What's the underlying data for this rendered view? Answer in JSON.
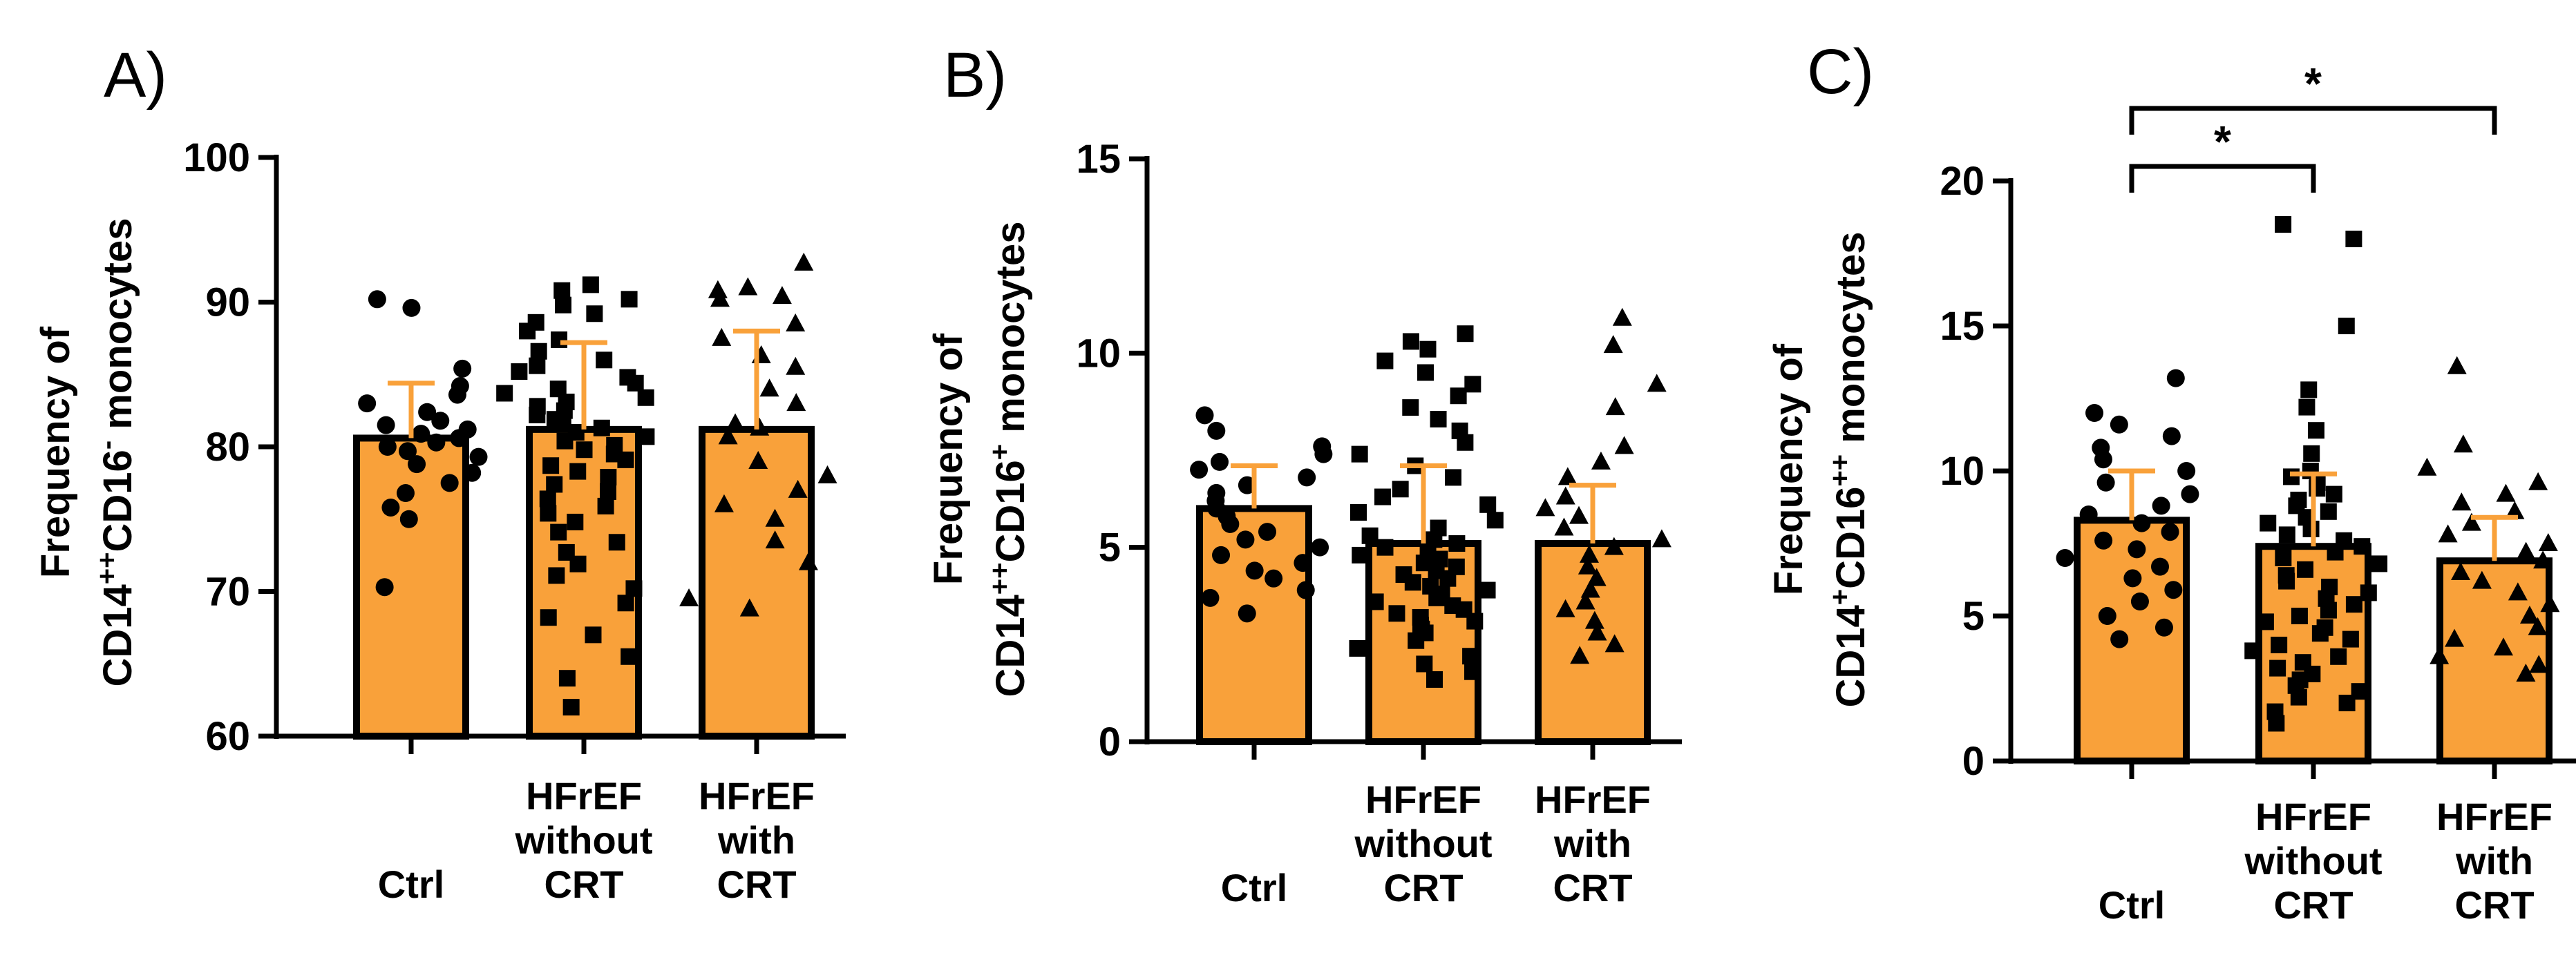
{
  "figure": {
    "bar_color": "#F9A13A",
    "error_color": "#F9A13A",
    "point_color": "#000000",
    "axis_color": "#000000"
  },
  "chart_data": [
    {
      "type": "bar",
      "panel": "A)",
      "ylabel_line1": "Frequency of",
      "ylabel_line2_parts": [
        "CD14",
        "++",
        "CD16",
        "-",
        " monocytes"
      ],
      "categories": [
        "Ctrl",
        "HFrEF without CRT",
        "HFrEF with CRT"
      ],
      "category_lines": [
        [
          "Ctrl"
        ],
        [
          "HFrEF",
          "without",
          "CRT"
        ],
        [
          "HFrEF",
          "with",
          "CRT"
        ]
      ],
      "means": [
        80.6,
        81.2,
        81.2
      ],
      "sd": [
        3.8,
        6.0,
        6.8
      ],
      "ylim": [
        60,
        100
      ],
      "yticks": [
        60,
        70,
        80,
        90,
        100
      ],
      "markers": [
        "circle",
        "square",
        "triangle"
      ],
      "points": [
        [
          90.2,
          89.6,
          85.4,
          84.2,
          83.6,
          83.0,
          82.4,
          81.8,
          81.5,
          81.2,
          80.9,
          80.6,
          80.3,
          80.0,
          79.7,
          79.3,
          78.8,
          78.2,
          77.5,
          76.8,
          75.8,
          75.0,
          70.3
        ],
        [
          91.2,
          90.8,
          90.2,
          89.8,
          89.2,
          88.6,
          88.0,
          87.4,
          86.6,
          86.0,
          85.6,
          85.2,
          84.8,
          84.4,
          84.0,
          83.7,
          83.4,
          83.1,
          82.8,
          82.5,
          82.2,
          81.9,
          81.6,
          81.3,
          81.0,
          80.7,
          80.4,
          80.1,
          79.8,
          79.5,
          79.1,
          78.7,
          78.3,
          77.9,
          77.4,
          76.9,
          76.4,
          75.9,
          75.4,
          74.8,
          74.1,
          73.4,
          72.7,
          71.9,
          71.1,
          70.2,
          69.2,
          68.2,
          67.0,
          65.5,
          64.0,
          62.0
        ],
        [
          92.7,
          91.0,
          90.8,
          90.4,
          90.2,
          88.5,
          87.5,
          86.3,
          85.5,
          84.0,
          83.0,
          81.6,
          81.3,
          80.7,
          79.0,
          78.0,
          77.0,
          76.0,
          75.0,
          73.5,
          72.0,
          69.5,
          68.8
        ]
      ]
    },
    {
      "type": "bar",
      "panel": "B)",
      "ylabel_line1": "Frequency of",
      "ylabel_line2_parts": [
        "CD14",
        "++",
        "CD16",
        "+",
        " monocytes"
      ],
      "categories": [
        "Ctrl",
        "HFrEF without CRT",
        "HFrEF with CRT"
      ],
      "category_lines": [
        [
          "Ctrl"
        ],
        [
          "HFrEF",
          "without",
          "CRT"
        ],
        [
          "HFrEF",
          "with",
          "CRT"
        ]
      ],
      "means": [
        6.0,
        5.1,
        5.1
      ],
      "sd": [
        1.1,
        2.0,
        1.5
      ],
      "ylim": [
        0,
        15
      ],
      "yticks": [
        0,
        5,
        10,
        15
      ],
      "markers": [
        "circle",
        "square",
        "triangle"
      ],
      "points": [
        [
          8.4,
          8.0,
          7.6,
          7.4,
          7.2,
          7.0,
          6.8,
          6.6,
          6.4,
          6.2,
          6.0,
          5.8,
          5.6,
          5.4,
          5.2,
          5.0,
          4.8,
          4.6,
          4.4,
          4.2,
          3.9,
          3.7,
          3.3
        ],
        [
          10.5,
          10.3,
          10.1,
          9.8,
          9.5,
          9.2,
          8.9,
          8.6,
          8.3,
          8.0,
          7.7,
          7.4,
          7.1,
          6.8,
          6.5,
          6.3,
          6.1,
          5.9,
          5.7,
          5.5,
          5.3,
          5.2,
          5.1,
          5.0,
          4.9,
          4.8,
          4.7,
          4.6,
          4.5,
          4.4,
          4.3,
          4.2,
          4.1,
          4.0,
          3.9,
          3.8,
          3.7,
          3.6,
          3.5,
          3.4,
          3.3,
          3.2,
          3.1,
          3.0,
          2.9,
          2.8,
          2.6,
          2.4,
          2.2,
          2.0,
          1.8,
          1.6
        ],
        [
          10.9,
          10.2,
          9.2,
          8.6,
          7.6,
          7.2,
          6.8,
          6.3,
          6.0,
          5.8,
          5.5,
          5.2,
          5.0,
          4.8,
          4.5,
          4.2,
          3.9,
          3.6,
          3.4,
          3.1,
          2.8,
          2.5,
          2.2
        ]
      ]
    },
    {
      "type": "bar",
      "panel": "C)",
      "ylabel_line1": "Frequency of",
      "ylabel_line2_parts": [
        "CD14",
        "+",
        "CD16",
        "++",
        " monocytes"
      ],
      "categories": [
        "Ctrl",
        "HFrEF without CRT",
        "HFrEF with CRT"
      ],
      "category_lines": [
        [
          "Ctrl"
        ],
        [
          "HFrEF",
          "without",
          "CRT"
        ],
        [
          "HFrEF",
          "with",
          "CRT"
        ]
      ],
      "means": [
        8.3,
        7.4,
        6.9
      ],
      "sd": [
        1.7,
        2.5,
        1.5
      ],
      "ylim": [
        0,
        20
      ],
      "yticks": [
        0,
        5,
        10,
        15,
        20
      ],
      "markers": [
        "circle",
        "square",
        "triangle"
      ],
      "points": [
        [
          13.2,
          12.0,
          11.6,
          11.2,
          10.8,
          10.4,
          10.0,
          9.6,
          9.2,
          8.8,
          8.5,
          8.2,
          7.9,
          7.6,
          7.3,
          7.0,
          6.7,
          6.3,
          5.9,
          5.5,
          5.0,
          4.6,
          4.2
        ],
        [
          18.5,
          18.0,
          15.0,
          12.8,
          12.2,
          11.4,
          10.6,
          10.0,
          9.8,
          9.6,
          9.4,
          9.2,
          9.0,
          8.8,
          8.6,
          8.4,
          8.2,
          8.0,
          7.8,
          7.6,
          7.4,
          7.2,
          7.0,
          6.8,
          6.6,
          6.4,
          6.2,
          6.0,
          5.8,
          5.6,
          5.4,
          5.2,
          5.0,
          4.8,
          4.6,
          4.4,
          4.2,
          4.0,
          3.8,
          3.6,
          3.4,
          3.2,
          3.0,
          2.8,
          2.6,
          2.4,
          2.2,
          2.0,
          1.7,
          1.3
        ],
        [
          13.6,
          10.9,
          10.1,
          9.6,
          9.2,
          8.9,
          8.6,
          8.2,
          7.8,
          7.5,
          7.2,
          6.9,
          6.5,
          6.2,
          5.8,
          5.4,
          5.0,
          4.6,
          4.2,
          3.9,
          3.6,
          3.3,
          3.0
        ]
      ],
      "significance": [
        {
          "from": 0,
          "to": 2,
          "label": "*",
          "y": 22.5
        },
        {
          "from": 0,
          "to": 1,
          "label": "*",
          "y": 20.5
        }
      ]
    }
  ]
}
